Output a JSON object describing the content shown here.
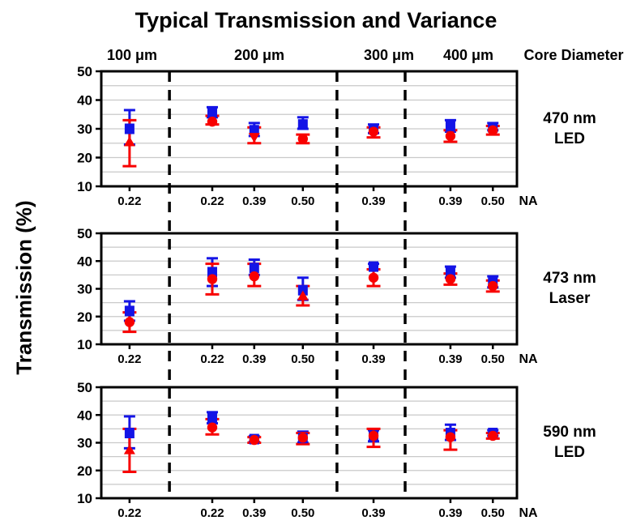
{
  "title": "Typical Transmission and Variance",
  "y_axis_label": "Transmission (%)",
  "core_diameter_label": "Core Diameter",
  "na_axis_label": "NA",
  "column_headers": [
    "100 μm",
    "200 μm",
    "300 μm",
    "400 μm"
  ],
  "colors": {
    "series_blue": "#1414e6",
    "series_red": "#f80000",
    "grid": "#c9c9c9",
    "axis": "#000000",
    "separator": "#000000"
  },
  "chart_data": [
    {
      "type": "scatter",
      "label": "470 nm LED",
      "label_lines": [
        "470 nm",
        "LED"
      ],
      "ylim": [
        10,
        50
      ],
      "yticks": [
        10,
        20,
        30,
        40,
        50
      ],
      "grid_step": 5,
      "legend": "none",
      "series_names": [
        "blue squares (mean)",
        "red markers (median)"
      ],
      "points": [
        {
          "group": "100 um",
          "na": "0.22",
          "blue": {
            "y": 30.0,
            "lo": 24.5,
            "hi": 36.5,
            "marker": "square"
          },
          "red": {
            "y": 25.5,
            "lo": 17.0,
            "hi": 33.0,
            "marker": "triangle-up"
          }
        },
        {
          "group": "200 um",
          "na": "0.22",
          "blue": {
            "y": 35.5,
            "lo": 34.0,
            "hi": 37.5,
            "marker": "square"
          },
          "red": {
            "y": 32.5,
            "lo": 31.5,
            "hi": 34.5,
            "marker": "circle"
          }
        },
        {
          "group": "200 um",
          "na": "0.39",
          "blue": {
            "y": 29.5,
            "lo": 27.5,
            "hi": 32.0,
            "marker": "square"
          },
          "red": {
            "y": 27.0,
            "lo": 25.0,
            "hi": 30.5,
            "marker": "triangle-down"
          }
        },
        {
          "group": "200 um",
          "na": "0.50",
          "blue": {
            "y": 31.5,
            "lo": 30.0,
            "hi": 34.0,
            "marker": "square"
          },
          "red": {
            "y": 26.5,
            "lo": 25.0,
            "hi": 28.0,
            "marker": "circle"
          }
        },
        {
          "group": "300 um",
          "na": "0.39",
          "blue": {
            "y": 30.0,
            "lo": 28.5,
            "hi": 31.5,
            "marker": "square"
          },
          "red": {
            "y": 29.0,
            "lo": 27.0,
            "hi": 30.5,
            "marker": "circle"
          }
        },
        {
          "group": "400 um",
          "na": "0.39",
          "blue": {
            "y": 31.0,
            "lo": 29.0,
            "hi": 33.0,
            "marker": "square"
          },
          "red": {
            "y": 27.5,
            "lo": 25.5,
            "hi": 29.5,
            "marker": "circle"
          }
        },
        {
          "group": "400 um",
          "na": "0.50",
          "blue": {
            "y": 30.5,
            "lo": 29.5,
            "hi": 32.0,
            "marker": "square"
          },
          "red": {
            "y": 29.5,
            "lo": 28.0,
            "hi": 31.0,
            "marker": "circle"
          }
        }
      ]
    },
    {
      "type": "scatter",
      "label": "473 nm Laser",
      "label_lines": [
        "473 nm",
        "Laser"
      ],
      "ylim": [
        10,
        50
      ],
      "yticks": [
        10,
        20,
        30,
        40,
        50
      ],
      "grid_step": 5,
      "legend": "none",
      "series_names": [
        "blue squares (mean)",
        "red markers (median)"
      ],
      "points": [
        {
          "group": "100 um",
          "na": "0.22",
          "blue": {
            "y": 22.0,
            "lo": 18.5,
            "hi": 25.5,
            "marker": "square"
          },
          "red": {
            "y": 18.0,
            "lo": 14.5,
            "hi": 21.5,
            "marker": "circle"
          }
        },
        {
          "group": "200 um",
          "na": "0.22",
          "blue": {
            "y": 36.0,
            "lo": 31.0,
            "hi": 41.0,
            "marker": "square"
          },
          "red": {
            "y": 33.5,
            "lo": 28.0,
            "hi": 39.0,
            "marker": "circle"
          }
        },
        {
          "group": "200 um",
          "na": "0.39",
          "blue": {
            "y": 37.5,
            "lo": 35.0,
            "hi": 40.5,
            "marker": "square"
          },
          "red": {
            "y": 34.5,
            "lo": 31.0,
            "hi": 39.0,
            "marker": "circle"
          }
        },
        {
          "group": "200 um",
          "na": "0.50",
          "blue": {
            "y": 29.5,
            "lo": 26.0,
            "hi": 34.0,
            "marker": "square"
          },
          "red": {
            "y": 27.5,
            "lo": 24.0,
            "hi": 31.0,
            "marker": "triangle-up"
          }
        },
        {
          "group": "300 um",
          "na": "0.39",
          "blue": {
            "y": 38.0,
            "lo": 37.0,
            "hi": 39.0,
            "marker": "square"
          },
          "red": {
            "y": 34.0,
            "lo": 31.0,
            "hi": 37.0,
            "marker": "circle"
          }
        },
        {
          "group": "400 um",
          "na": "0.39",
          "blue": {
            "y": 36.0,
            "lo": 34.0,
            "hi": 38.0,
            "marker": "square"
          },
          "red": {
            "y": 33.5,
            "lo": 31.5,
            "hi": 35.5,
            "marker": "circle"
          }
        },
        {
          "group": "400 um",
          "na": "0.50",
          "blue": {
            "y": 32.5,
            "lo": 30.5,
            "hi": 34.5,
            "marker": "square"
          },
          "red": {
            "y": 31.0,
            "lo": 29.0,
            "hi": 33.0,
            "marker": "circle"
          }
        }
      ]
    },
    {
      "type": "scatter",
      "label": "590 nm LED",
      "label_lines": [
        "590 nm",
        "LED"
      ],
      "ylim": [
        10,
        50
      ],
      "yticks": [
        10,
        20,
        30,
        40,
        50
      ],
      "grid_step": 5,
      "legend": "none",
      "series_names": [
        "blue squares (mean)",
        "red markers (median)"
      ],
      "points": [
        {
          "group": "100 um",
          "na": "0.22",
          "blue": {
            "y": 33.5,
            "lo": 28.0,
            "hi": 39.5,
            "marker": "square"
          },
          "red": {
            "y": 27.5,
            "lo": 19.5,
            "hi": 35.0,
            "marker": "triangle-up"
          }
        },
        {
          "group": "200 um",
          "na": "0.22",
          "blue": {
            "y": 39.0,
            "lo": 37.0,
            "hi": 41.0,
            "marker": "square"
          },
          "red": {
            "y": 35.5,
            "lo": 33.0,
            "hi": 38.5,
            "marker": "circle"
          }
        },
        {
          "group": "200 um",
          "na": "0.39",
          "blue": {
            "y": 31.3,
            "lo": 30.3,
            "hi": 32.3,
            "marker": "square"
          },
          "red": {
            "y": 31.0,
            "lo": 30.0,
            "hi": 32.0,
            "marker": "circle"
          }
        },
        {
          "group": "200 um",
          "na": "0.50",
          "blue": {
            "y": 31.7,
            "lo": 30.0,
            "hi": 34.0,
            "marker": "square"
          },
          "red": {
            "y": 31.8,
            "lo": 29.5,
            "hi": 33.5,
            "marker": "circle"
          }
        },
        {
          "group": "300 um",
          "na": "0.39",
          "blue": {
            "y": 32.5,
            "lo": 30.5,
            "hi": 34.5,
            "marker": "square"
          },
          "red": {
            "y": 32.5,
            "lo": 28.5,
            "hi": 35.0,
            "marker": "circle"
          }
        },
        {
          "group": "400 um",
          "na": "0.39",
          "blue": {
            "y": 33.5,
            "lo": 31.0,
            "hi": 36.5,
            "marker": "square"
          },
          "red": {
            "y": 32.0,
            "lo": 27.5,
            "hi": 34.5,
            "marker": "circle"
          }
        },
        {
          "group": "400 um",
          "na": "0.50",
          "blue": {
            "y": 33.5,
            "lo": 32.5,
            "hi": 34.5,
            "marker": "square"
          },
          "red": {
            "y": 32.5,
            "lo": 31.5,
            "hi": 33.5,
            "marker": "circle"
          }
        }
      ]
    }
  ]
}
